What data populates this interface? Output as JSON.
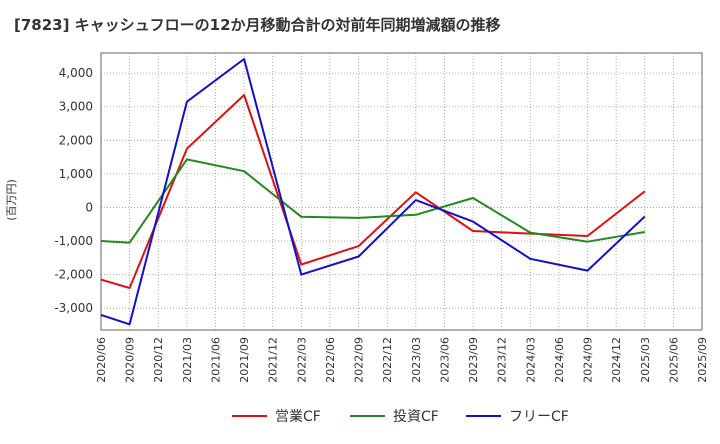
{
  "chart_data": {
    "type": "line",
    "title": "[7823]  キャッシュフローの12か月移動合計の対前年同期増減額の推移",
    "ylabel": "(百万円)",
    "xlabel": "",
    "ylim": [
      -3650,
      4600
    ],
    "y_ticks": [
      -3000,
      -2000,
      -1000,
      0,
      1000,
      2000,
      3000,
      4000
    ],
    "y_tick_labels": [
      "-3,000",
      "-2,000",
      "-1,000",
      "0",
      "1,000",
      "2,000",
      "3,000",
      "4,000"
    ],
    "x_labels": [
      "2020/06",
      "2020/09",
      "2020/12",
      "2021/03",
      "2021/06",
      "2021/09",
      "2021/12",
      "2022/03",
      "2022/06",
      "2022/09",
      "2022/12",
      "2023/03",
      "2023/06",
      "2023/09",
      "2023/12",
      "2024/03",
      "2024/06",
      "2024/09",
      "2024/12",
      "2025/03",
      "2025/06",
      "2025/09"
    ],
    "grid": true,
    "legend_position": "bottom",
    "series": [
      {
        "name": "営業CF",
        "color": "#dd1111",
        "values": [
          -2150,
          -2400,
          null,
          1750,
          null,
          3350,
          null,
          -1700,
          null,
          -1150,
          null,
          450,
          null,
          -700,
          null,
          -780,
          null,
          -850,
          null,
          480,
          null,
          null
        ]
      },
      {
        "name": "投資CF",
        "color": "#228822",
        "values": [
          -1000,
          -1050,
          null,
          1430,
          null,
          1080,
          null,
          -280,
          null,
          -310,
          null,
          -220,
          null,
          280,
          null,
          -750,
          null,
          -1020,
          null,
          -730,
          null,
          null
        ]
      },
      {
        "name": "フリーCF",
        "color": "#1111cc",
        "values": [
          -3200,
          -3480,
          null,
          3150,
          null,
          4420,
          null,
          -2000,
          null,
          -1460,
          null,
          220,
          null,
          -420,
          null,
          -1530,
          null,
          -1880,
          null,
          -270,
          null,
          null
        ]
      }
    ]
  }
}
